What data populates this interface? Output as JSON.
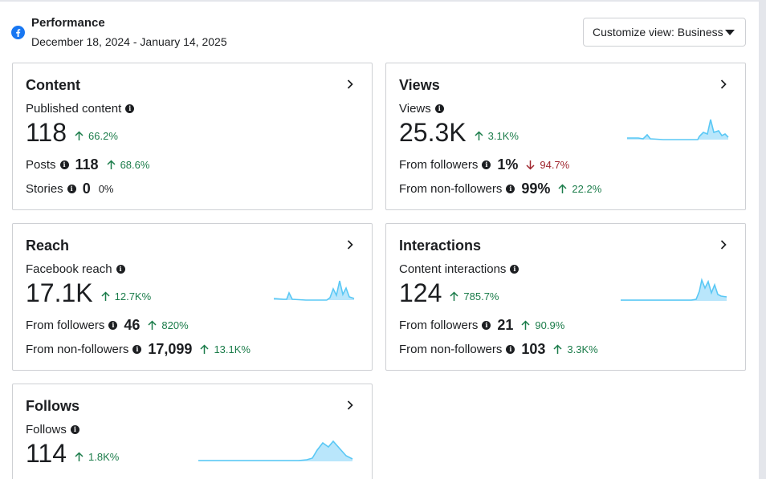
{
  "header": {
    "title": "Performance",
    "date_range": "December 18, 2024 - January 14, 2025",
    "customize_label": "Customize view: Business",
    "brand_color": "#1877f2"
  },
  "colors": {
    "up": "#1b7c4a",
    "down": "#a0262e",
    "spark_line": "#5ac8f5",
    "spark_fill": "#b9e6fb"
  },
  "cards": {
    "content": {
      "title": "Content",
      "metric_label": "Published content",
      "value": "118",
      "delta": "66.2%",
      "sub1": {
        "label": "Posts",
        "value": "118",
        "delta": "68.6%"
      },
      "sub2": {
        "label": "Stories",
        "value": "0",
        "delta": "0%"
      }
    },
    "views": {
      "title": "Views",
      "metric_label": "Views",
      "value": "25.3K",
      "delta": "3.1K%",
      "sub1": {
        "label": "From followers",
        "value": "1%",
        "delta": "94.7%"
      },
      "sub2": {
        "label": "From non-followers",
        "value": "99%",
        "delta": "22.2%"
      }
    },
    "reach": {
      "title": "Reach",
      "metric_label": "Facebook reach",
      "value": "17.1K",
      "delta": "12.7K%",
      "sub1": {
        "label": "From followers",
        "value": "46",
        "delta": "820%"
      },
      "sub2": {
        "label": "From non-followers",
        "value": "17,099",
        "delta": "13.1K%"
      }
    },
    "interactions": {
      "title": "Interactions",
      "metric_label": "Content interactions",
      "value": "124",
      "delta": "785.7%",
      "sub1": {
        "label": "From followers",
        "value": "21",
        "delta": "90.9%"
      },
      "sub2": {
        "label": "From non-followers",
        "value": "103",
        "delta": "3.3K%"
      }
    },
    "follows": {
      "title": "Follows",
      "metric_label": "Follows",
      "value": "114",
      "delta": "1.8K%"
    }
  }
}
